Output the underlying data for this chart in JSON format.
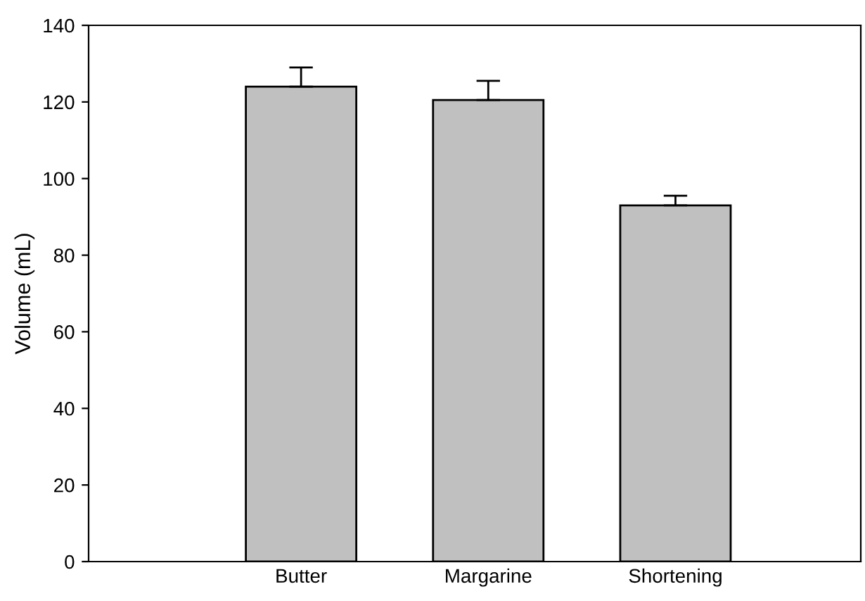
{
  "chart_data": {
    "type": "bar",
    "ylabel": "Volume (mL)",
    "categories": [
      "Butter",
      "Margarine",
      "Shortening"
    ],
    "values": [
      124,
      120.5,
      93
    ],
    "errors": [
      [
        124,
        129
      ],
      [
        120.5,
        125.5
      ],
      [
        93,
        95.5
      ]
    ],
    "color": "#c0c0c0",
    "ylim": [
      0,
      140
    ],
    "yticks": [
      0,
      20,
      40,
      60,
      80,
      100,
      120,
      140
    ],
    "grid": false,
    "legend": false
  }
}
